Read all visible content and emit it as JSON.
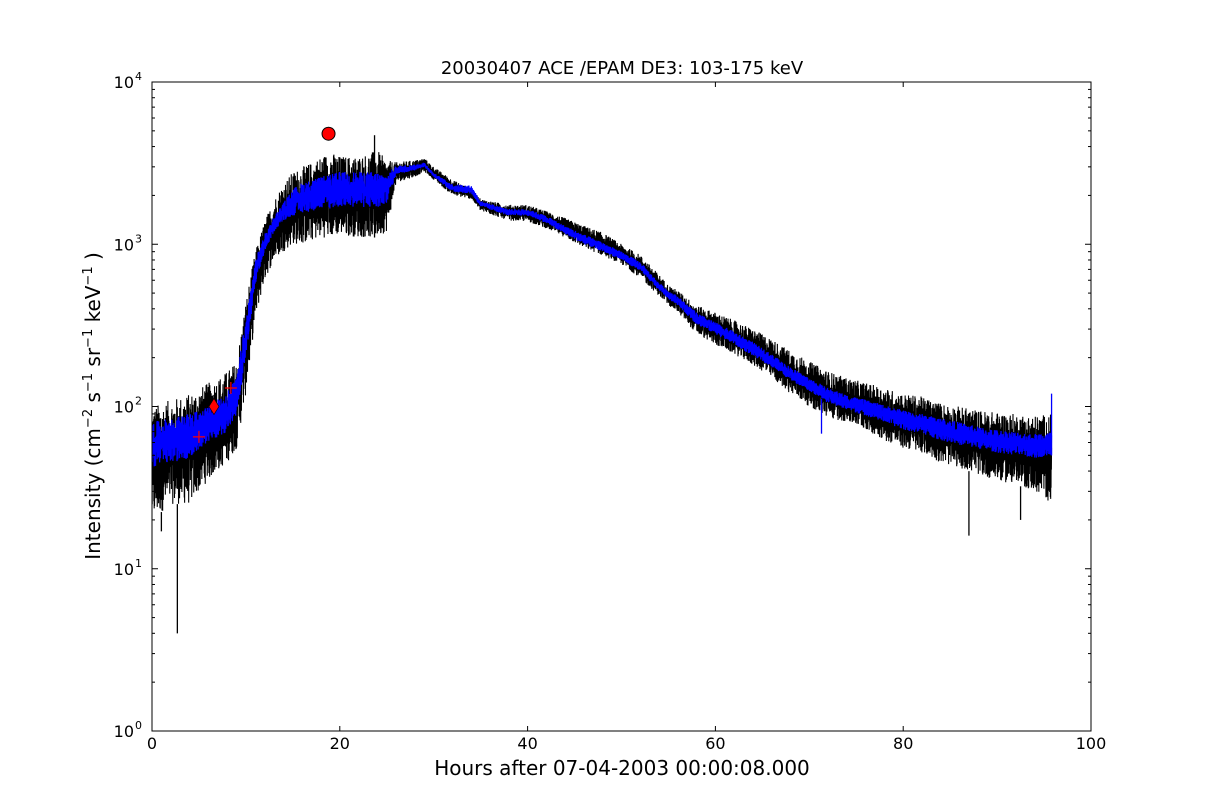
{
  "chart_data": {
    "type": "line",
    "title": "20030407 ACE /EPAM DE3: 103-175 keV",
    "xlabel": "Hours after 07-04-2003 00:00:08.000",
    "ylabel": {
      "pre": "Intensity (cm",
      "exp1": "−2",
      "s": " s",
      "exp2": "−1",
      "sr": " sr",
      "exp3": "−1",
      "kev": " keV",
      "exp4": "−1",
      "post": " )"
    },
    "xlim": [
      0,
      100
    ],
    "ylim": [
      1,
      10000
    ],
    "yscale": "log",
    "x_ticks": [
      {
        "value": 0,
        "label": "0"
      },
      {
        "value": 20,
        "label": "20"
      },
      {
        "value": 40,
        "label": "40"
      },
      {
        "value": 60,
        "label": "60"
      },
      {
        "value": 80,
        "label": "80"
      },
      {
        "value": 100,
        "label": "100"
      }
    ],
    "y_ticks": [
      {
        "value": 1,
        "base": "10",
        "exp": "0"
      },
      {
        "value": 10,
        "base": "10",
        "exp": "1"
      },
      {
        "value": 100,
        "base": "10",
        "exp": "2"
      },
      {
        "value": 1000,
        "base": "10",
        "exp": "3"
      },
      {
        "value": 10000,
        "base": "10",
        "exp": "4"
      }
    ],
    "series": [
      {
        "color": "#000000",
        "style": "noisy raw intensity",
        "envelope_x": [
          0,
          2,
          4,
          5,
          6,
          7,
          8,
          9,
          10,
          11,
          12,
          13,
          14,
          15,
          16,
          17,
          18,
          19,
          20,
          22,
          24,
          25,
          26,
          28,
          29,
          30,
          32,
          34,
          35,
          38,
          40,
          42,
          44,
          46,
          48,
          50,
          52,
          54,
          55,
          56,
          58,
          60,
          62,
          64,
          66,
          68,
          70,
          72,
          74,
          76,
          78,
          80,
          82,
          84,
          86,
          88,
          90,
          92,
          94,
          95.8
        ],
        "lower": [
          20,
          25,
          25,
          30,
          35,
          40,
          45,
          55,
          120,
          350,
          600,
          800,
          900,
          1000,
          1000,
          1050,
          1100,
          1100,
          1150,
          1100,
          1100,
          1200,
          2400,
          2600,
          2800,
          2500,
          2000,
          1900,
          1600,
          1400,
          1380,
          1250,
          1100,
          950,
          850,
          750,
          620,
          480,
          420,
          380,
          280,
          240,
          210,
          180,
          150,
          120,
          100,
          85,
          80,
          72,
          62,
          55,
          52,
          45,
          42,
          38,
          35,
          33,
          30,
          25
        ],
        "upper": [
          100,
          110,
          120,
          130,
          140,
          150,
          165,
          190,
          450,
          900,
          1400,
          1900,
          2400,
          2800,
          3000,
          3200,
          3500,
          3700,
          3500,
          3500,
          3800,
          3300,
          3200,
          3300,
          3400,
          3000,
          2500,
          2200,
          1900,
          1750,
          1750,
          1600,
          1450,
          1300,
          1180,
          1000,
          860,
          650,
          560,
          520,
          420,
          380,
          340,
          300,
          260,
          220,
          190,
          165,
          150,
          140,
          130,
          120,
          115,
          105,
          100,
          95,
          92,
          90,
          88,
          90
        ],
        "spikes": [
          {
            "x": 2.7,
            "y": 4
          },
          {
            "x": 1.0,
            "y": 17
          },
          {
            "x": 23.7,
            "y": 4700
          },
          {
            "x": 87.0,
            "y": 16
          },
          {
            "x": 92.5,
            "y": 20
          }
        ]
      },
      {
        "color": "#0000ff",
        "style": "smoothed intensity",
        "envelope_x": [
          0,
          2,
          4,
          5,
          6,
          7,
          8,
          9,
          10,
          11,
          12,
          13,
          14,
          15,
          16,
          17,
          18,
          19,
          20,
          22,
          24,
          25,
          26,
          28,
          29,
          30,
          32,
          34,
          35,
          38,
          40,
          42,
          44,
          46,
          48,
          50,
          52,
          54,
          55,
          56,
          58,
          60,
          62,
          64,
          66,
          68,
          70,
          72,
          74,
          76,
          78,
          80,
          82,
          84,
          86,
          88,
          90,
          92,
          94,
          95.8
        ],
        "lower": [
          42,
          45,
          48,
          55,
          60,
          65,
          70,
          85,
          200,
          550,
          900,
          1200,
          1400,
          1500,
          1550,
          1600,
          1650,
          1650,
          1700,
          1700,
          1650,
          1800,
          2700,
          2850,
          3000,
          2600,
          2100,
          2050,
          1700,
          1500,
          1500,
          1350,
          1150,
          1000,
          900,
          800,
          680,
          520,
          460,
          420,
          320,
          280,
          240,
          205,
          175,
          145,
          125,
          105,
          95,
          88,
          80,
          72,
          68,
          62,
          58,
          55,
          52,
          50,
          48,
          50
        ],
        "upper": [
          80,
          85,
          90,
          95,
          100,
          110,
          125,
          150,
          350,
          800,
          1150,
          1500,
          1800,
          2200,
          2400,
          2500,
          2600,
          2700,
          2800,
          2800,
          2800,
          2700,
          3050,
          3100,
          3200,
          2750,
          2350,
          2300,
          1850,
          1650,
          1650,
          1500,
          1300,
          1150,
          1030,
          900,
          780,
          580,
          520,
          480,
          380,
          330,
          290,
          250,
          210,
          175,
          150,
          130,
          118,
          110,
          102,
          95,
          90,
          85,
          80,
          75,
          72,
          70,
          68,
          70
        ],
        "spikes": [
          {
            "x": 71.3,
            "y": 68
          },
          {
            "x": 95.8,
            "y": 120
          }
        ]
      }
    ],
    "markers": [
      {
        "shape": "circle",
        "x": 18.8,
        "y": 4800,
        "color": "#ff0000"
      },
      {
        "shape": "diamond",
        "x": 6.6,
        "y": 100,
        "color": "#ff0000"
      },
      {
        "shape": "plus",
        "x": 5.0,
        "y": 65,
        "color": "#ff0000"
      },
      {
        "shape": "plus",
        "x": 8.4,
        "y": 130,
        "color": "#ff0000"
      }
    ],
    "grid": false,
    "legend": "none"
  }
}
